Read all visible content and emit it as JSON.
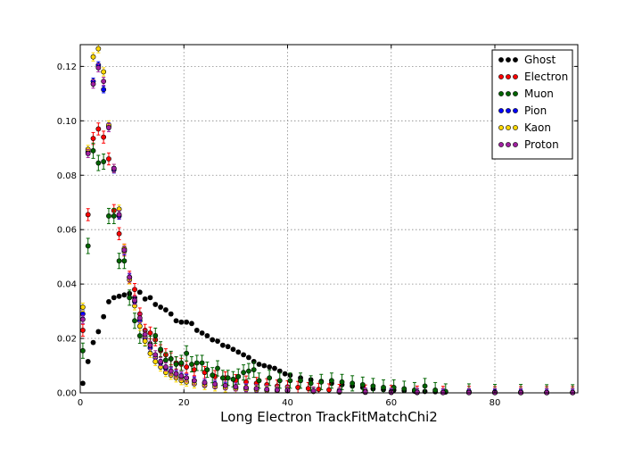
{
  "chart_data": {
    "type": "scatter",
    "xlabel": "Long Electron TrackFitMatchChi2",
    "ylabel": "",
    "xlim": [
      0,
      96
    ],
    "ylim": [
      0,
      0.128
    ],
    "x_ticks": [
      0,
      20,
      40,
      60,
      80
    ],
    "x_tick_labels": [
      "0",
      "20",
      "40",
      "60",
      "80"
    ],
    "y_ticks": [
      0.0,
      0.02,
      0.04,
      0.06,
      0.08,
      0.1,
      0.12
    ],
    "y_tick_labels": [
      "0.00",
      "0.02",
      "0.04",
      "0.06",
      "0.08",
      "0.10",
      "0.12"
    ],
    "grid": true,
    "legend_position": "top-right",
    "series": [
      {
        "name": "Ghost",
        "color": "#000000",
        "x": [
          0.5,
          1.5,
          2.5,
          3.5,
          4.5,
          5.5,
          6.5,
          7.5,
          8.5,
          9.5,
          10.5,
          11.5,
          12.5,
          13.5,
          14.5,
          15.5,
          16.5,
          17.5,
          18.5,
          19.5,
          20.5,
          21.5,
          22.5,
          23.5,
          24.5,
          25.5,
          26.5,
          27.5,
          28.5,
          29.5,
          30.5,
          31.5,
          32.5,
          33.5,
          34.5,
          35.5,
          36.5,
          37.5,
          38.5,
          39.5,
          40.5,
          42.5,
          44.5,
          46.5,
          48.5,
          50.5,
          52.5,
          54.5,
          56.5,
          58.5,
          60.5,
          62.5,
          64.5,
          66.5,
          68.5,
          70.5,
          75,
          80,
          85,
          90,
          95
        ],
        "y": [
          0.0035,
          0.0115,
          0.0185,
          0.0225,
          0.028,
          0.0335,
          0.035,
          0.0355,
          0.036,
          0.0365,
          0.035,
          0.037,
          0.0345,
          0.035,
          0.0325,
          0.0315,
          0.0305,
          0.029,
          0.0265,
          0.026,
          0.026,
          0.0255,
          0.023,
          0.022,
          0.021,
          0.0195,
          0.019,
          0.0175,
          0.017,
          0.016,
          0.015,
          0.014,
          0.013,
          0.0115,
          0.0105,
          0.01,
          0.0095,
          0.009,
          0.008,
          0.007,
          0.0065,
          0.0055,
          0.0048,
          0.0042,
          0.0035,
          0.003,
          0.0025,
          0.002,
          0.0015,
          0.0012,
          0.001,
          0.0008,
          0.0006,
          0.0005,
          0.0004,
          0.0003,
          0.0002,
          0.0002,
          0.0001,
          0.0001,
          0.0001
        ],
        "yerr": 0.0006
      },
      {
        "name": "Electron",
        "color": "#ff0000",
        "x": [
          0.5,
          1.5,
          2.5,
          3.5,
          4.5,
          5.5,
          6.5,
          7.5,
          8.5,
          9.5,
          10.5,
          11.5,
          12.5,
          13.5,
          14.5,
          15.5,
          16.5,
          17.5,
          18.5,
          19.5,
          20.5,
          22,
          24,
          26,
          28,
          30,
          32,
          34,
          36,
          38,
          40,
          42,
          44,
          46,
          48,
          50,
          55,
          60,
          65,
          70,
          75,
          80,
          85,
          90,
          95
        ],
        "y": [
          0.023,
          0.0655,
          0.0935,
          0.097,
          0.094,
          0.086,
          0.067,
          0.0585,
          0.0525,
          0.0425,
          0.038,
          0.029,
          0.023,
          0.022,
          0.0195,
          0.0155,
          0.014,
          0.0125,
          0.011,
          0.0105,
          0.0095,
          0.0085,
          0.0075,
          0.006,
          0.0055,
          0.0045,
          0.004,
          0.0035,
          0.003,
          0.0025,
          0.0022,
          0.002,
          0.0016,
          0.0013,
          0.0011,
          0.0009,
          0.0007,
          0.0005,
          0.0003,
          0.0002,
          0.0002,
          0.0001,
          0.0001,
          0.0001,
          0.0001
        ],
        "yerr": 0.0022
      },
      {
        "name": "Muon",
        "color": "#006400",
        "x": [
          0.5,
          1.5,
          2.5,
          3.5,
          4.5,
          5.5,
          6.5,
          7.5,
          8.5,
          9.5,
          10.5,
          11.5,
          12.5,
          13.5,
          14.5,
          15.5,
          16.5,
          17.5,
          18.5,
          19.5,
          20.5,
          21.5,
          22.5,
          23.5,
          24.5,
          25.5,
          26.5,
          27.5,
          28.5,
          29.5,
          30.5,
          31.5,
          32.5,
          33.5,
          34.5,
          36.5,
          38.5,
          40.5,
          42.5,
          44.5,
          46.5,
          48.5,
          50.5,
          52.5,
          54.5,
          56.5,
          58.5,
          60.5,
          62.5,
          64.5,
          66.5,
          68.5,
          70.5,
          75,
          80,
          85,
          90,
          95
        ],
        "y": [
          0.0155,
          0.054,
          0.089,
          0.0845,
          0.085,
          0.065,
          0.065,
          0.0485,
          0.0485,
          0.035,
          0.0265,
          0.021,
          0.02,
          0.018,
          0.021,
          0.016,
          0.012,
          0.0125,
          0.0105,
          0.011,
          0.0145,
          0.0105,
          0.011,
          0.011,
          0.0085,
          0.0065,
          0.009,
          0.0055,
          0.0055,
          0.005,
          0.006,
          0.0075,
          0.008,
          0.0085,
          0.0045,
          0.0055,
          0.0045,
          0.0045,
          0.0045,
          0.0035,
          0.004,
          0.0045,
          0.004,
          0.0035,
          0.003,
          0.0025,
          0.002,
          0.002,
          0.0015,
          0.001,
          0.0025,
          0.001,
          0.0005,
          0.0005,
          0.0003,
          0.0003,
          0.0002,
          0.0002
        ],
        "yerr": 0.0028
      },
      {
        "name": "Pion",
        "color": "#0000ff",
        "x": [
          0.5,
          1.5,
          2.5,
          3.5,
          4.5,
          5.5,
          6.5,
          7.5,
          8.5,
          9.5,
          10.5,
          11.5,
          12.5,
          13.5,
          14.5,
          15.5,
          16.5,
          17.5,
          18.5,
          19.5,
          20.5,
          22,
          24,
          26,
          28,
          30,
          32,
          34,
          36,
          38,
          40,
          45,
          50,
          55,
          60,
          65,
          70,
          75,
          80,
          85,
          90,
          95
        ],
        "y": [
          0.029,
          0.0885,
          0.1145,
          0.1205,
          0.1115,
          0.098,
          0.082,
          0.065,
          0.052,
          0.0425,
          0.0335,
          0.0265,
          0.0205,
          0.0165,
          0.013,
          0.011,
          0.009,
          0.008,
          0.007,
          0.006,
          0.0055,
          0.0045,
          0.0035,
          0.003,
          0.0025,
          0.002,
          0.0018,
          0.0015,
          0.0012,
          0.001,
          0.0009,
          0.0006,
          0.0004,
          0.0003,
          0.0002,
          0.0002,
          0.0001,
          0.0001,
          0.0001,
          0.0001,
          0.0001,
          0.0001
        ],
        "yerr": 0.0012
      },
      {
        "name": "Kaon",
        "color": "#ffd700",
        "x": [
          0.5,
          1.5,
          2.5,
          3.5,
          4.5,
          5.5,
          6.5,
          7.5,
          8.5,
          9.5,
          10.5,
          11.5,
          12.5,
          13.5,
          14.5,
          15.5,
          16.5,
          17.5,
          18.5,
          19.5,
          20.5,
          22,
          24,
          26,
          28,
          30,
          32,
          34,
          36,
          38,
          40,
          45,
          50,
          55,
          60,
          65,
          70,
          75,
          80,
          85,
          90,
          95
        ],
        "y": [
          0.0315,
          0.0895,
          0.1235,
          0.1265,
          0.118,
          0.0985,
          0.0825,
          0.0675,
          0.053,
          0.0415,
          0.032,
          0.0245,
          0.019,
          0.0145,
          0.0115,
          0.0095,
          0.0075,
          0.0065,
          0.0055,
          0.0045,
          0.004,
          0.0033,
          0.0027,
          0.0022,
          0.0018,
          0.0015,
          0.0013,
          0.0011,
          0.0009,
          0.0008,
          0.0007,
          0.0005,
          0.0003,
          0.0002,
          0.0002,
          0.0001,
          0.0001,
          0.0001,
          0.0001,
          0.0001,
          0.0001,
          0.0001
        ],
        "yerr": 0.0015
      },
      {
        "name": "Proton",
        "color": "#a020a0",
        "x": [
          0.5,
          1.5,
          2.5,
          3.5,
          4.5,
          5.5,
          6.5,
          7.5,
          8.5,
          9.5,
          10.5,
          11.5,
          12.5,
          13.5,
          14.5,
          15.5,
          16.5,
          17.5,
          18.5,
          19.5,
          20.5,
          22,
          24,
          26,
          28,
          30,
          32,
          34,
          36,
          38,
          40,
          45,
          50,
          55,
          60,
          65,
          70,
          75,
          80,
          85,
          90,
          95
        ],
        "y": [
          0.027,
          0.088,
          0.1135,
          0.1195,
          0.1145,
          0.0975,
          0.0825,
          0.0655,
          0.0525,
          0.0425,
          0.034,
          0.0275,
          0.0215,
          0.0175,
          0.014,
          0.0115,
          0.0095,
          0.008,
          0.007,
          0.0062,
          0.0055,
          0.0045,
          0.0038,
          0.0032,
          0.0027,
          0.0022,
          0.0019,
          0.0016,
          0.0013,
          0.0011,
          0.001,
          0.0007,
          0.0005,
          0.0003,
          0.0002,
          0.0002,
          0.0001,
          0.0001,
          0.0001,
          0.0001,
          0.0001,
          0.0001
        ],
        "yerr": 0.0015
      }
    ]
  }
}
